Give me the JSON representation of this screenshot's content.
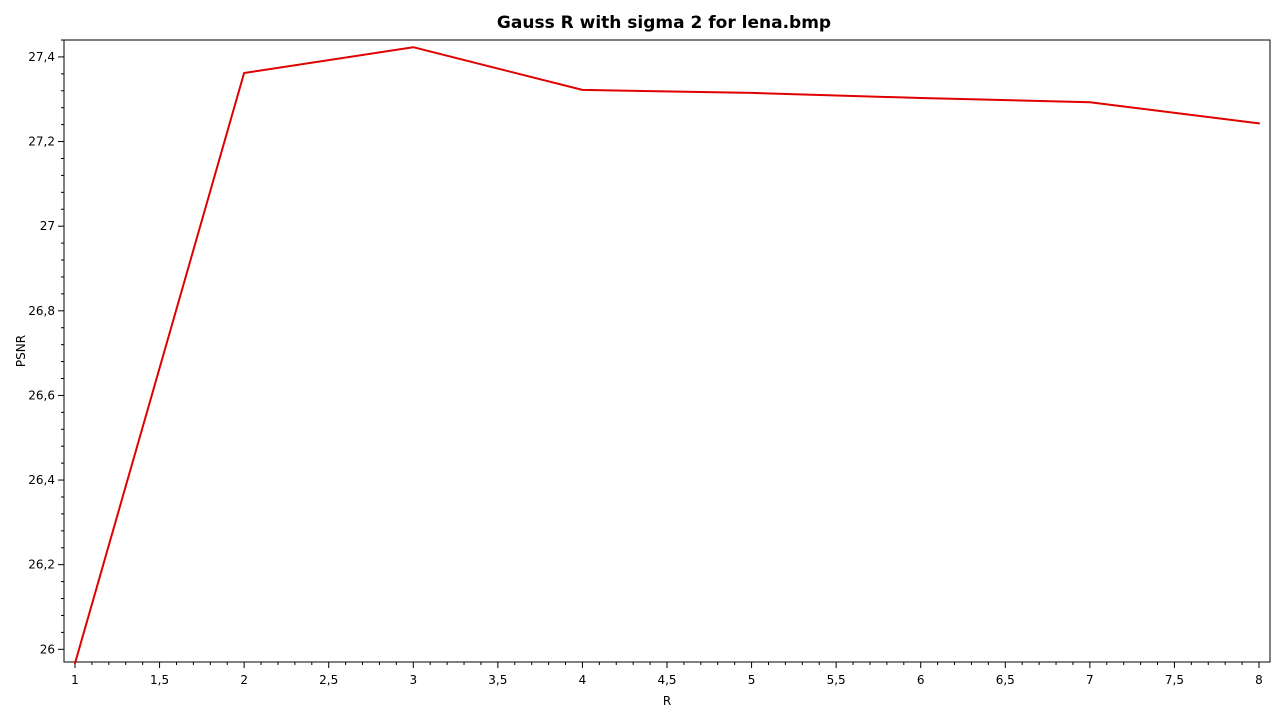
{
  "chart_data": {
    "type": "line",
    "title": "Gauss R with sigma 2 for lena.bmp",
    "xlabel": "R",
    "ylabel": "PSNR",
    "xlim": [
      1,
      8
    ],
    "ylim": [
      25.97,
      27.44
    ],
    "x_ticks": [
      1,
      1.5,
      2,
      2.5,
      3,
      3.5,
      4,
      4.5,
      5,
      5.5,
      6,
      6.5,
      7,
      7.5,
      8
    ],
    "x_tick_labels": [
      "1",
      "1,5",
      "2",
      "2,5",
      "3",
      "3,5",
      "4",
      "4,5",
      "5",
      "5,5",
      "6",
      "6,5",
      "7",
      "7,5",
      "8"
    ],
    "x_minor_step": 0.1,
    "y_ticks": [
      26,
      26.2,
      26.4,
      26.6,
      26.8,
      27,
      27.2,
      27.4
    ],
    "y_tick_labels": [
      "26",
      "26,2",
      "26,4",
      "26,6",
      "26,8",
      "27",
      "27,2",
      "27,4"
    ],
    "y_minor_step": 0.04,
    "grid": false,
    "color": "#e00000",
    "series": [
      {
        "x": [
          1,
          2,
          3,
          4,
          5,
          6,
          7,
          8
        ],
        "y": [
          25.967,
          27.362,
          27.423,
          27.322,
          27.315,
          27.303,
          27.293,
          27.243
        ]
      }
    ]
  }
}
